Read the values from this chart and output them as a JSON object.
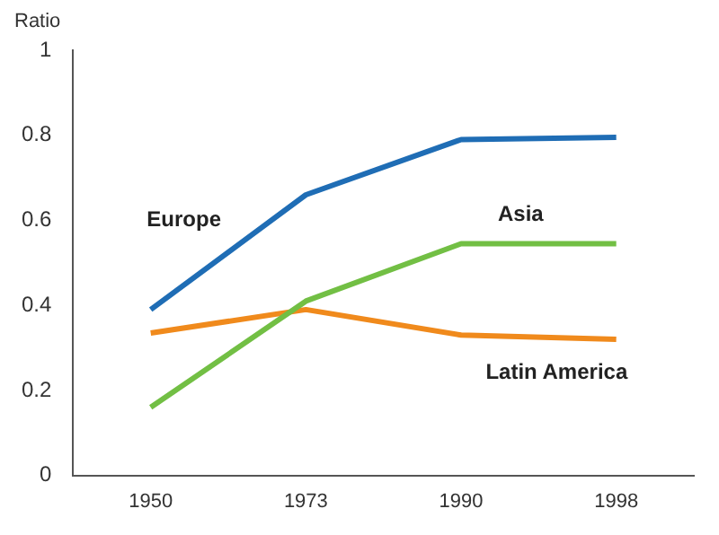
{
  "chart_data": {
    "type": "line",
    "ylabel": "Ratio",
    "categories": [
      "1950",
      "1973",
      "1990",
      "1998"
    ],
    "series": [
      {
        "name": "Europe",
        "color": "#1f6db5",
        "values": [
          0.39,
          0.66,
          0.79,
          0.795
        ]
      },
      {
        "name": "Asia",
        "color": "#72bf44",
        "values": [
          0.16,
          0.41,
          0.545,
          0.545
        ]
      },
      {
        "name": "Latin America",
        "color": "#f08a1c",
        "values": [
          0.335,
          0.39,
          0.33,
          0.32
        ]
      }
    ],
    "ylim": [
      0,
      1
    ],
    "yticks": [
      0,
      0.2,
      0.4,
      0.6,
      0.8,
      1
    ],
    "grid": false,
    "legend": false,
    "marker": "none",
    "line_style": "solid"
  }
}
